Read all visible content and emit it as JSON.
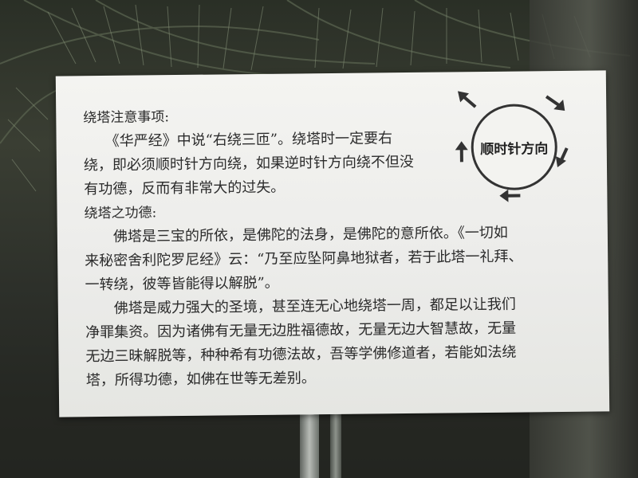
{
  "sign": {
    "lines": [
      "绕塔注意事项:",
      "　　《华严经》中说“右绕三匝”。绕塔时一定要右",
      "绕，即必须顺时针方向绕，如果逆时针方向绕不但没",
      "有功德，反而有非常大的过失。",
      "绕塔之功德:",
      "　　佛塔是三宝的所依，是佛陀的法身，是佛陀的意所依。《一切如",
      "来秘密舍利陀罗尼经》云：“乃至应坠阿鼻地狱者，若于此塔一礼拜、",
      "一转绕，彼等皆能得以解脱”。",
      "　　佛塔是威力强大的圣境，甚至连无心地绕塔一周，都足以让我们",
      "净罪集资。因为诸佛有无量无边胜福德故，无量无边大智慧故，无量",
      "无边三昧解脱等，种种希有功德法故，吾等学佛修道者，若能如法绕",
      "塔，所得功德，如佛在世等无差别。"
    ],
    "diagram_label": "顺时针方向"
  },
  "colors": {
    "sign_background": "#ececea",
    "text": "#2b2b2b",
    "foliage": "#2a2f26"
  },
  "icons": {
    "arrows": "clockwise-arrow-icon"
  }
}
